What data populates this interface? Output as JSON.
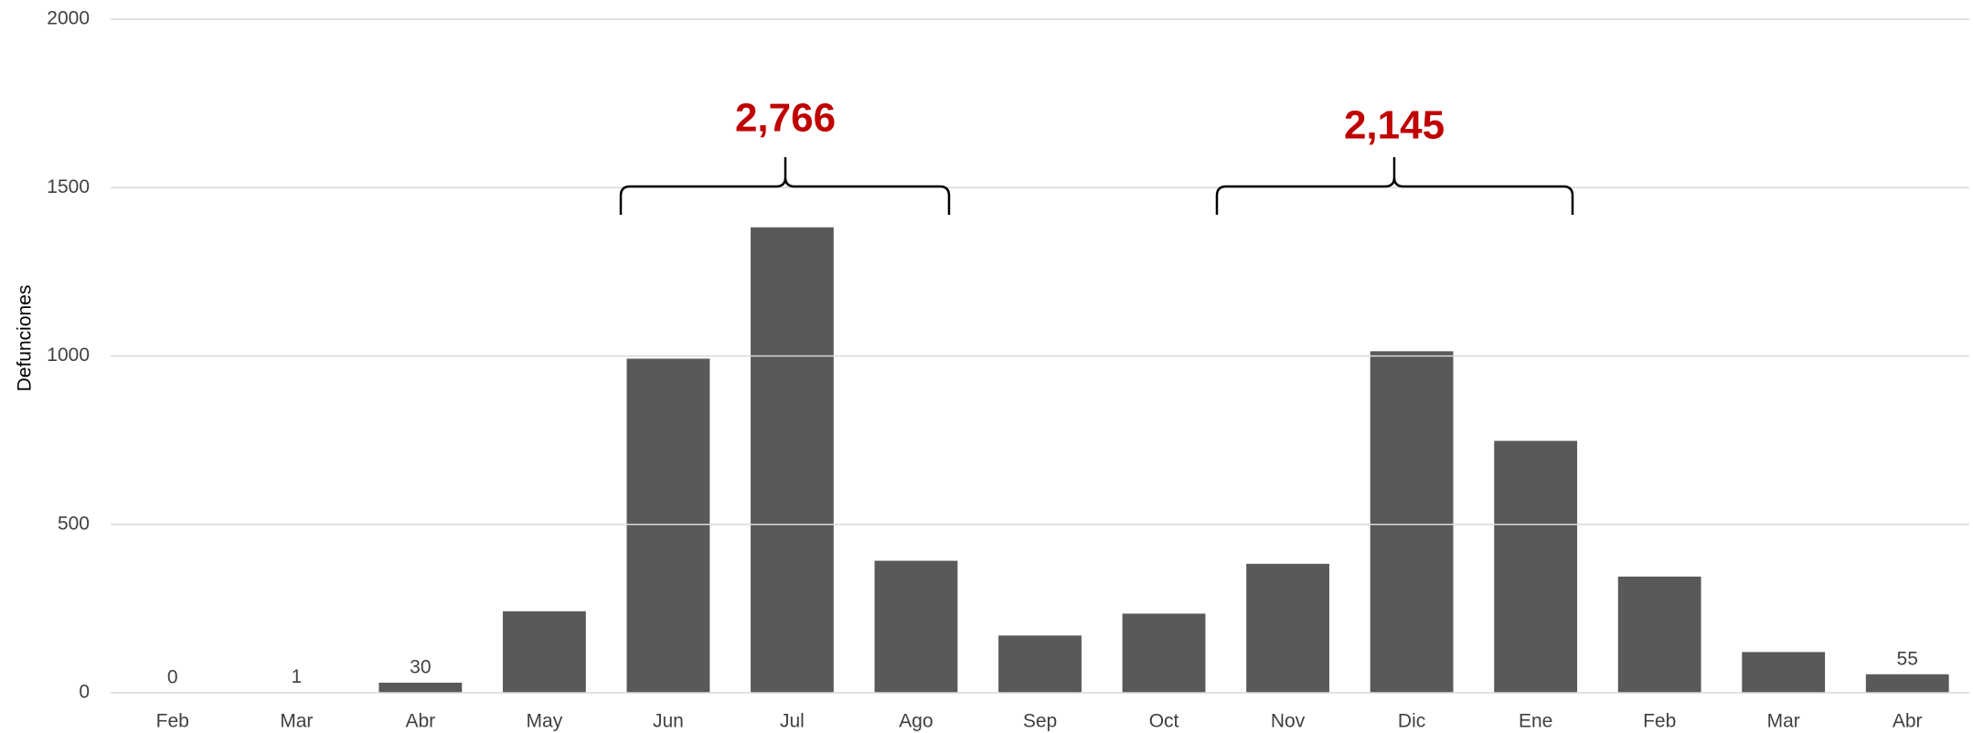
{
  "chart_data": {
    "type": "bar",
    "y_label": "Defunciones",
    "categories": [
      "Feb",
      "Mar",
      "Abr",
      "May",
      "Jun",
      "Jul",
      "Ago",
      "Sep",
      "Oct",
      "Nov",
      "Dic",
      "Ene",
      "Feb",
      "Mar",
      "Abr"
    ],
    "values": [
      0,
      1,
      30,
      242,
      992,
      1382,
      392,
      170,
      235,
      383,
      1014,
      748,
      345,
      121,
      55
    ],
    "color": "#595959",
    "ylim": [
      0,
      2000
    ],
    "yticks": [
      0,
      500,
      1000,
      1500,
      2000
    ],
    "grid": true,
    "annotations": [
      "2,766",
      "2,145"
    ],
    "annotation_color": "#c00000"
  }
}
